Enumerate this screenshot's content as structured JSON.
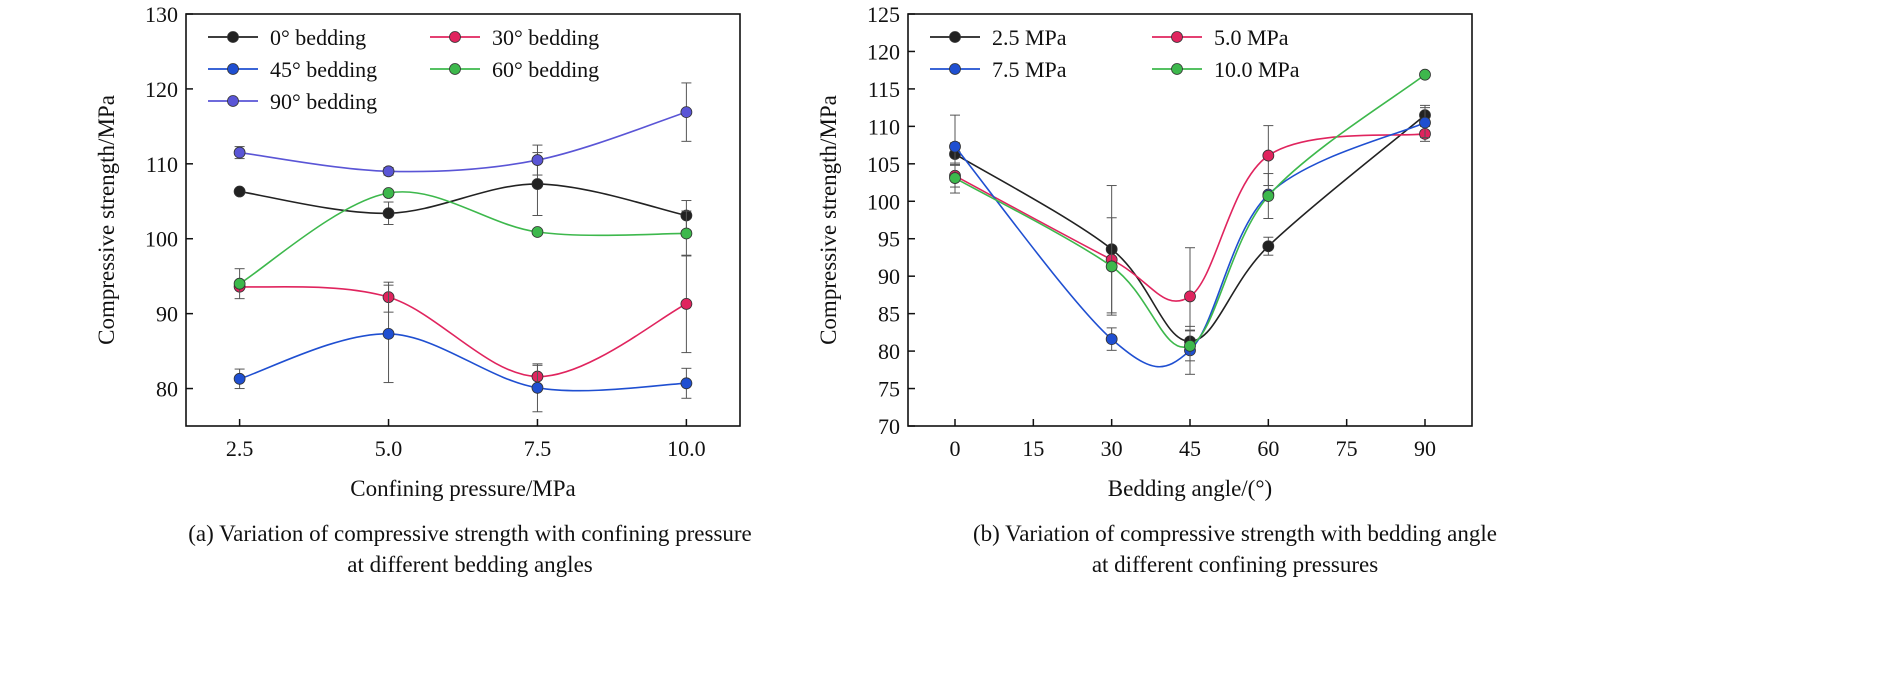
{
  "captions": {
    "a": {
      "line1": "(a) Variation of compressive strength with confining pressure",
      "line2": "at different bedding angles"
    },
    "b": {
      "line1": "(b) Variation of compressive strength with bedding angle",
      "line2": "at different confining pressures"
    }
  },
  "chart_data": [
    {
      "type": "line",
      "xlabel": "Confining pressure/MPa",
      "ylabel": "Compressive strength/MPa",
      "x": [
        2.5,
        5.0,
        7.5,
        10.0
      ],
      "xticks": [
        "2.5",
        "5.0",
        "7.5",
        "10.0"
      ],
      "xlim": [
        1.6,
        10.9
      ],
      "ylim": [
        75,
        130
      ],
      "yticks": [
        80,
        90,
        100,
        110,
        120,
        130
      ],
      "legend_position": "top-left",
      "series": [
        {
          "name": "0° bedding",
          "color": "#222222",
          "values": [
            106.3,
            103.4,
            107.3,
            103.1
          ],
          "errors": [
            0,
            1.5,
            4.2,
            2.0
          ]
        },
        {
          "name": "30° bedding",
          "color": "#e0245e",
          "values": [
            93.6,
            92.2,
            81.6,
            91.3
          ],
          "errors": [
            0,
            2.0,
            1.5,
            6.5
          ]
        },
        {
          "name": "45° bedding",
          "color": "#1f4fd1",
          "values": [
            81.3,
            87.3,
            80.1,
            80.7
          ],
          "errors": [
            1.3,
            6.5,
            3.2,
            2.0
          ]
        },
        {
          "name": "60° bedding",
          "color": "#3db84c",
          "values": [
            94.0,
            106.1,
            100.9,
            100.7
          ],
          "errors": [
            2.0,
            0,
            0,
            3.0
          ]
        },
        {
          "name": "90° bedding",
          "color": "#5a55d6",
          "values": [
            111.5,
            109.0,
            110.5,
            116.9
          ],
          "errors": [
            0.8,
            0.5,
            2.0,
            3.9
          ]
        }
      ]
    },
    {
      "type": "line",
      "xlabel": "Bedding angle/(°)",
      "ylabel": "Compressive strength/MPa",
      "x": [
        0,
        30,
        45,
        60,
        90
      ],
      "xticks": [
        "0",
        "15",
        "30",
        "45",
        "60",
        "75",
        "90"
      ],
      "xtick_values": [
        0,
        15,
        30,
        45,
        60,
        75,
        90
      ],
      "xlim": [
        -9,
        99
      ],
      "ylim": [
        70,
        125
      ],
      "yticks": [
        70,
        75,
        80,
        85,
        90,
        95,
        100,
        105,
        110,
        115,
        120,
        125
      ],
      "legend_position": "top-left",
      "series": [
        {
          "name": "2.5 MPa",
          "color": "#222222",
          "values": [
            106.3,
            93.6,
            81.3,
            94.0,
            111.5
          ],
          "errors": [
            1.5,
            8.5,
            1.5,
            1.2,
            1.3
          ]
        },
        {
          "name": "5.0 MPa",
          "color": "#e0245e",
          "values": [
            103.4,
            92.2,
            87.3,
            106.1,
            109.0
          ],
          "errors": [
            1.5,
            0,
            6.5,
            4.0,
            1.0
          ]
        },
        {
          "name": "7.5 MPa",
          "color": "#1f4fd1",
          "values": [
            107.3,
            81.6,
            80.1,
            100.9,
            110.5
          ],
          "errors": [
            4.2,
            1.5,
            3.2,
            0,
            2.0
          ]
        },
        {
          "name": "10.0 MPa",
          "color": "#3db84c",
          "values": [
            103.1,
            91.3,
            80.7,
            100.7,
            116.9
          ],
          "errors": [
            2.0,
            6.5,
            2.0,
            3.0,
            0
          ]
        }
      ]
    }
  ]
}
